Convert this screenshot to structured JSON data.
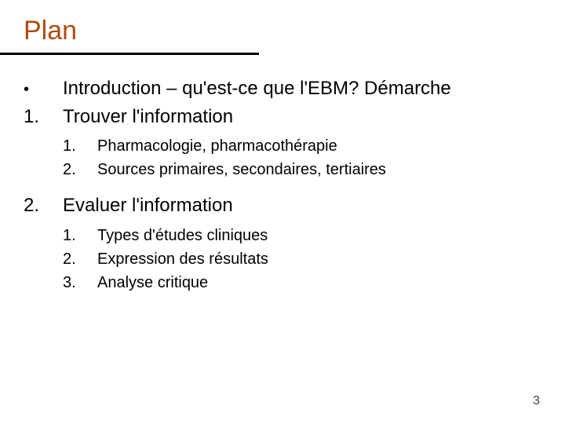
{
  "colors": {
    "title": "#b24a13",
    "text": "#000000",
    "rule": "#000000",
    "pageNum": "#404040",
    "background": "#ffffff"
  },
  "ruleWidthPx": 330,
  "title": "Plan",
  "items": [
    {
      "marker": "•",
      "text": "Introduction – qu'est-ce que l'EBM? Démarche"
    },
    {
      "marker": "1.",
      "text": "Trouver l'information"
    }
  ],
  "sub1": [
    {
      "marker": "1.",
      "text": "Pharmacologie, pharmacothérapie"
    },
    {
      "marker": "2.",
      "text": "Sources primaires, secondaires, tertiaires"
    }
  ],
  "item2": {
    "marker": "2.",
    "text": "Evaluer l'information"
  },
  "sub2": [
    {
      "marker": "1.",
      "text": "Types d'études cliniques"
    },
    {
      "marker": "2.",
      "text": "Expression des résultats"
    },
    {
      "marker": "3.",
      "text": "Analyse critique"
    }
  ],
  "pageNumber": "3"
}
